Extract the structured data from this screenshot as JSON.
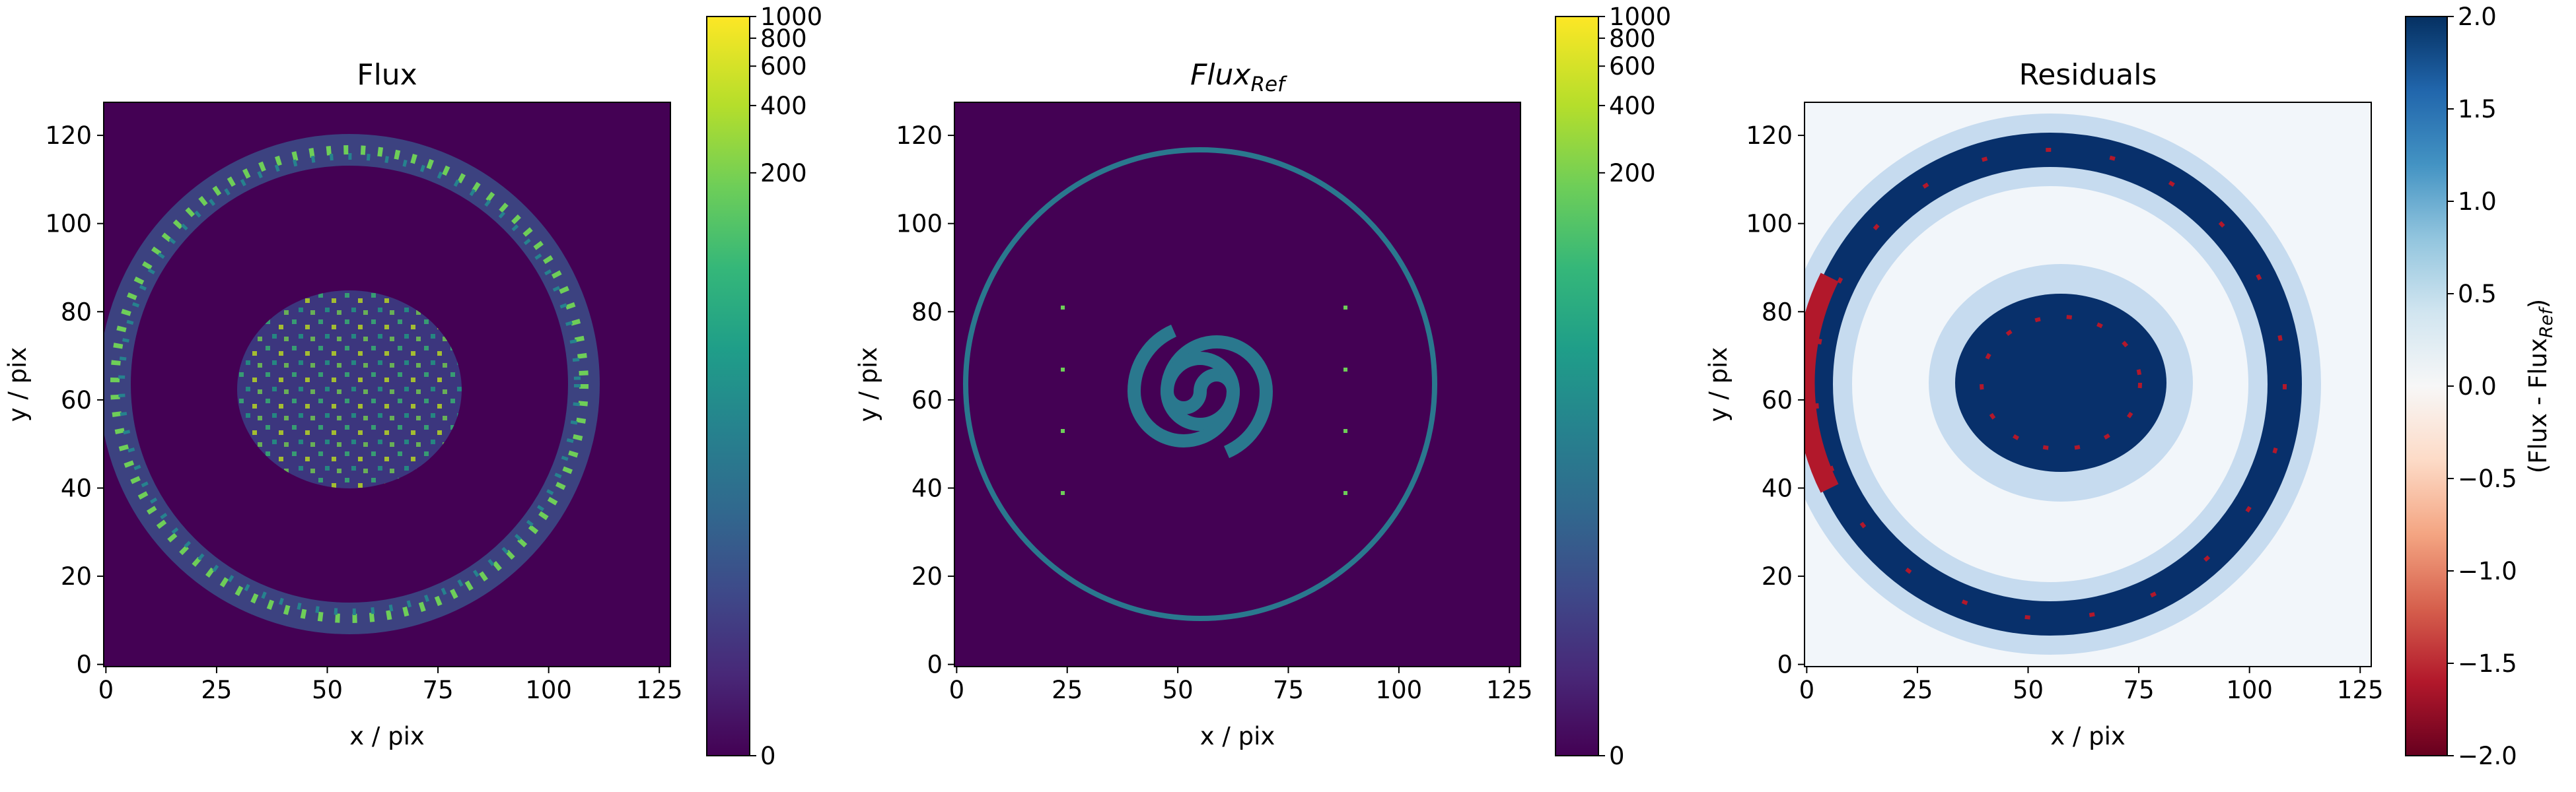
{
  "chart_data": [
    {
      "type": "image",
      "title": "Flux",
      "xlabel": "x / pix",
      "ylabel": "y / pix",
      "xlim": [
        -0.5,
        127.5
      ],
      "ylim": [
        -0.5,
        127.5
      ],
      "xticks": [
        0,
        25,
        50,
        75,
        100,
        125
      ],
      "yticks": [
        0,
        20,
        40,
        60,
        80,
        100,
        120
      ],
      "colormap": "viridis",
      "cscale": "log",
      "clim": [
        0,
        1000
      ],
      "cticks": [
        0,
        200,
        400,
        600,
        800,
        1000
      ]
    },
    {
      "type": "image",
      "title": "Flux",
      "title_sub": "Ref",
      "xlabel": "x / pix",
      "ylabel": "y / pix",
      "xlim": [
        -0.5,
        127.5
      ],
      "ylim": [
        -0.5,
        127.5
      ],
      "xticks": [
        0,
        25,
        50,
        75,
        100,
        125
      ],
      "yticks": [
        0,
        20,
        40,
        60,
        80,
        100,
        120
      ],
      "colormap": "viridis",
      "cscale": "log",
      "clim": [
        0,
        1000
      ],
      "cticks": [
        0,
        200,
        400,
        600,
        800,
        1000
      ]
    },
    {
      "type": "image",
      "title": "Residuals",
      "xlabel": "x / pix",
      "ylabel": "y / pix",
      "xlim": [
        -0.5,
        127.5
      ],
      "ylim": [
        -0.5,
        127.5
      ],
      "xticks": [
        0,
        25,
        50,
        75,
        100,
        125
      ],
      "yticks": [
        0,
        20,
        40,
        60,
        80,
        100,
        120
      ],
      "colormap": "RdBu",
      "cscale": "linear",
      "clim": [
        -2,
        2
      ],
      "cticks": [
        {
          "value": -2,
          "label": "−2.0"
        },
        {
          "value": -1.5,
          "label": "−1.5"
        },
        {
          "value": -1,
          "label": "−1.0"
        },
        {
          "value": -0.5,
          "label": "−0.5"
        },
        {
          "value": 0,
          "label": "0.0"
        },
        0.5,
        {
          "value": 1,
          "label": "1.0"
        },
        1.5,
        {
          "value": 2,
          "label": "2.0"
        }
      ],
      "clabel": "(Flux - Flux",
      "clabel_sub": "Ref",
      "clabel_end": ")"
    }
  ]
}
